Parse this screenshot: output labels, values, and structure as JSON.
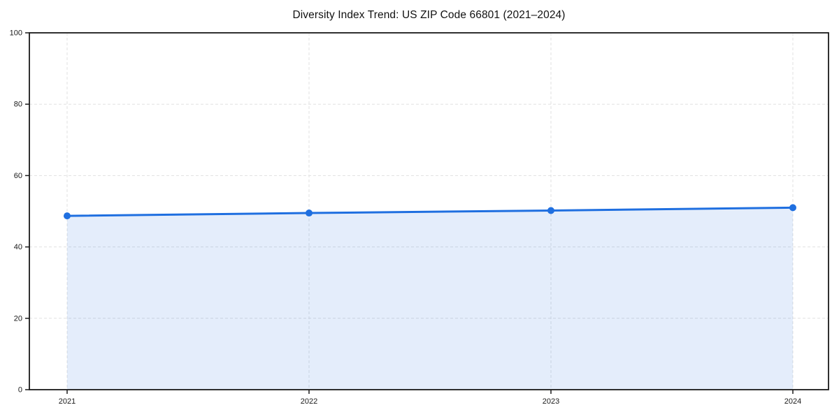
{
  "chart_data": {
    "type": "area",
    "title": "Diversity Index Trend: US ZIP Code 66801 (2021–2024)",
    "x": [
      "2021",
      "2022",
      "2023",
      "2024"
    ],
    "series": [
      {
        "name": "Diversity Index",
        "values": [
          48.7,
          49.5,
          50.2,
          51.0
        ]
      }
    ],
    "xlabel": "",
    "ylabel": "",
    "ylim": [
      0,
      100
    ],
    "yticks": [
      0,
      20,
      40,
      60,
      80,
      100
    ],
    "xticks": [
      "2021",
      "2022",
      "2023",
      "2024"
    ],
    "grid": {
      "visible": true,
      "style": "dashed",
      "axes": "both"
    },
    "legend": {
      "visible": false
    },
    "colors": {
      "line": "#1f6fe0",
      "marker": "#1f6fe0",
      "area_fill": "rgba(31,111,224,0.12)",
      "grid": "#e1e1e1",
      "spine": "#1a1a1a",
      "tick_text": "#1a1a1a",
      "background": "#ffffff"
    },
    "marker_radius": 5,
    "line_width": 3
  }
}
